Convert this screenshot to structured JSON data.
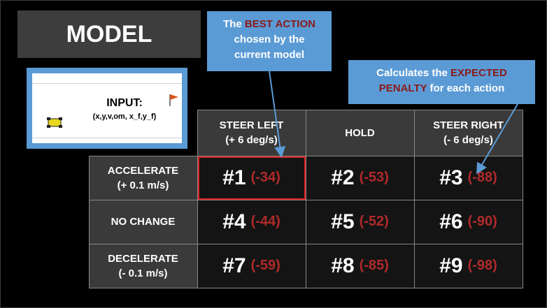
{
  "title": "MODEL",
  "input": {
    "label": "INPUT:",
    "vars": "(x,y,v,om, x_f,y_f)"
  },
  "callout_best": {
    "pre": "The",
    "highlight": "BEST ACTION",
    "rest1": "chosen by the",
    "rest2": "current model"
  },
  "callout_expected": {
    "pre": "Calculates the",
    "highlight1": "EXPECTED",
    "highlight2": "PENALTY",
    "rest": "for each action"
  },
  "table": {
    "columns": [
      {
        "line1": "STEER LEFT",
        "line2": "(+ 6 deg/s)"
      },
      {
        "line1": "HOLD",
        "line2": ""
      },
      {
        "line1": "STEER RIGHT",
        "line2": "(- 6 deg/s)"
      }
    ],
    "rows": [
      {
        "line1": "ACCELERATE",
        "line2": "(+ 0.1 m/s)",
        "cells": [
          {
            "id": "#1",
            "penalty": "(-34)"
          },
          {
            "id": "#2",
            "penalty": "(-53)"
          },
          {
            "id": "#3",
            "penalty": "(-88)"
          }
        ]
      },
      {
        "line1": "NO CHANGE",
        "line2": "",
        "cells": [
          {
            "id": "#4",
            "penalty": "(-44)"
          },
          {
            "id": "#5",
            "penalty": "(-52)"
          },
          {
            "id": "#6",
            "penalty": "(-90)"
          }
        ]
      },
      {
        "line1": "DECELERATE",
        "line2": "(- 0.1 m/s)",
        "cells": [
          {
            "id": "#7",
            "penalty": "(-59)"
          },
          {
            "id": "#8",
            "penalty": "(-85)"
          },
          {
            "id": "#9",
            "penalty": "(-98)"
          }
        ]
      }
    ]
  },
  "colors": {
    "callout": "#5b9bd5",
    "penalty": "#b02a2a",
    "highlight_border": "#dd2222"
  }
}
